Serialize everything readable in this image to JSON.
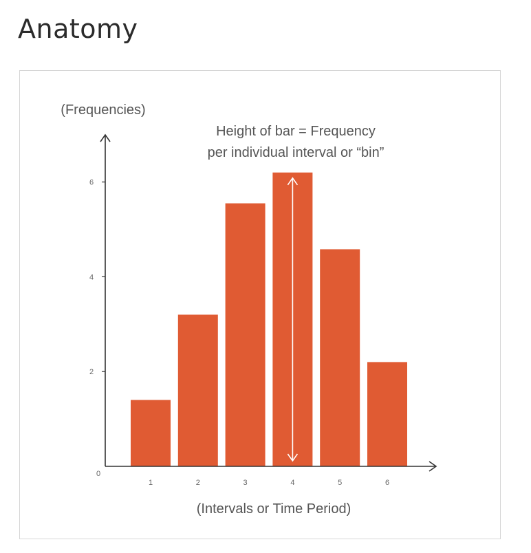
{
  "page": {
    "title": "Anatomy"
  },
  "chart_data": {
    "type": "bar",
    "categories": [
      "1",
      "2",
      "3",
      "4",
      "5",
      "6"
    ],
    "values": [
      1.4,
      3.2,
      5.55,
      6.2,
      4.58,
      2.2
    ],
    "xlabel": "(Intervals or Time Period)",
    "ylabel": "(Frequencies)",
    "yticks": [
      "0",
      "2",
      "4",
      "6"
    ],
    "ylim": [
      0,
      6
    ],
    "grid": false,
    "bar_color": "#e05b33",
    "annotation": {
      "line1": "Height of bar = Frequency",
      "line2": "per individual interval or  “bin”",
      "target_category": "4"
    }
  }
}
